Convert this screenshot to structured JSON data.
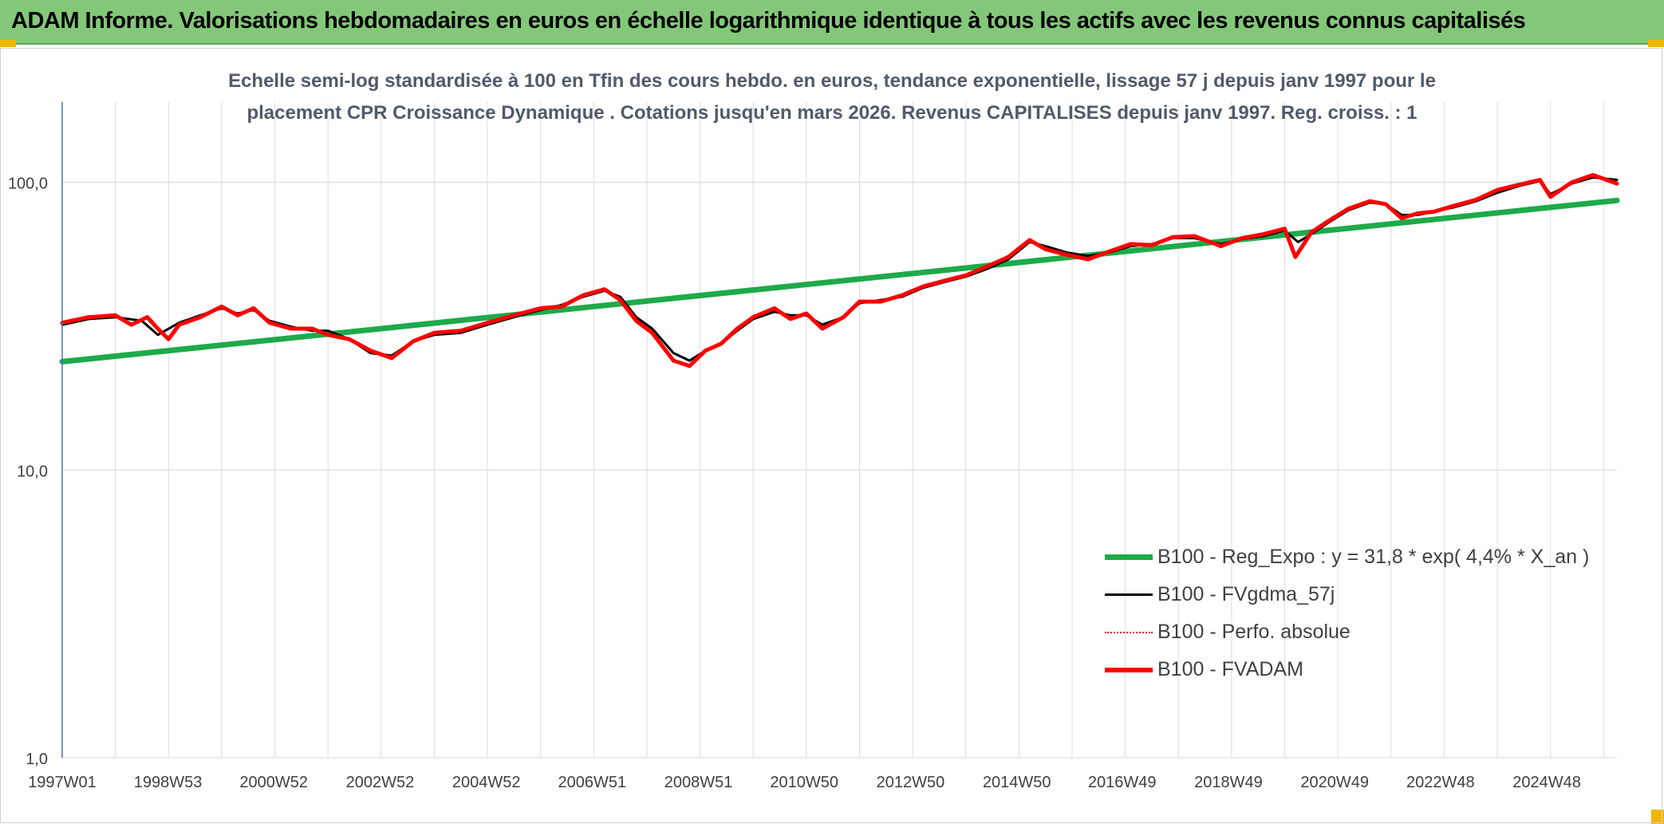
{
  "header": {
    "title": "ADAM Informe. Valorisations hebdomadaires en euros en échelle logarithmique identique à tous les actifs avec les revenus connus capitalisés"
  },
  "chart_data": {
    "type": "line",
    "title_line1": "Echelle semi-log standardisée à 100 en Tfin des cours hebdo. en euros, tendance exponentielle, lissage 57 j depuis janv 1997 pour le",
    "title_line2": "placement CPR Croissance Dynamique . Cotations jusqu'en mars 2026. Revenus CAPITALISES depuis janv 1997. Reg. croiss. : 1",
    "xlabel": "",
    "ylabel": "",
    "y_scale": "log",
    "ylim": [
      1,
      190
    ],
    "y_ticks": [
      1,
      10,
      100
    ],
    "y_tick_labels": [
      "1,0",
      "10,0",
      "100,0"
    ],
    "x_range": [
      1997.0,
      2026.25
    ],
    "x_ticks": [
      1997.0,
      1998.99,
      2000.98,
      2002.98,
      2004.98,
      2006.97,
      2008.97,
      2010.96,
      2012.96,
      2014.96,
      2016.94,
      2018.94,
      2020.94,
      2022.93,
      2024.93
    ],
    "x_tick_labels": [
      "1997W01",
      "1998W53",
      "2000W52",
      "2002W52",
      "2004W52",
      "2006W51",
      "2008W51",
      "2010W50",
      "2012W50",
      "2014W50",
      "2016W49",
      "2018W49",
      "2020W49",
      "2022W48",
      "2024W48"
    ],
    "grid": true,
    "legend_position": "bottom-right",
    "series": [
      {
        "name": "B100 - Reg_Expo : y = 31,8 * exp( 4,4% *  X_an )",
        "color": "#1eaa4a",
        "style": "thick",
        "x": [
          1997.0,
          2026.25
        ],
        "y": [
          23.8,
          86.5
        ]
      },
      {
        "name": "B100 - FVgdma_57j",
        "color": "#000000",
        "style": "thin",
        "x": [
          1997.0,
          1997.5,
          1998.0,
          1998.5,
          1998.8,
          1999.2,
          1999.6,
          2000.0,
          2000.3,
          2000.6,
          2000.9,
          2001.3,
          2001.7,
          2002.0,
          2002.4,
          2002.8,
          2003.2,
          2003.6,
          2004.0,
          2004.5,
          2005.0,
          2005.5,
          2006.0,
          2006.4,
          2006.8,
          2007.2,
          2007.5,
          2007.8,
          2008.1,
          2008.5,
          2008.8,
          2009.1,
          2009.4,
          2009.7,
          2010.0,
          2010.4,
          2010.7,
          2011.0,
          2011.3,
          2011.7,
          2012.0,
          2012.4,
          2012.8,
          2013.2,
          2013.6,
          2014.0,
          2014.4,
          2014.8,
          2015.2,
          2015.5,
          2015.9,
          2016.3,
          2016.7,
          2017.1,
          2017.5,
          2017.9,
          2018.3,
          2018.8,
          2019.2,
          2019.6,
          2020.0,
          2020.25,
          2020.5,
          2020.8,
          2021.2,
          2021.6,
          2021.9,
          2022.2,
          2022.5,
          2022.8,
          2023.2,
          2023.6,
          2024.0,
          2024.4,
          2024.8,
          2025.0,
          2025.4,
          2025.8,
          2026.25
        ],
        "y": [
          32.0,
          33.5,
          34.0,
          33.0,
          29.5,
          32.5,
          34.5,
          36.5,
          35.0,
          36.0,
          33.0,
          31.5,
          30.5,
          30.5,
          28.5,
          25.5,
          25.0,
          28.0,
          29.5,
          30.0,
          32.0,
          34.0,
          36.0,
          37.5,
          40.0,
          42.0,
          40.0,
          34.0,
          31.0,
          25.5,
          24.0,
          26.0,
          27.5,
          30.5,
          33.5,
          35.5,
          34.5,
          34.5,
          32.0,
          34.0,
          38.0,
          39.0,
          40.0,
          43.0,
          45.0,
          47.0,
          50.0,
          54.0,
          62.0,
          60.0,
          57.0,
          55.5,
          57.0,
          60.0,
          61.0,
          64.0,
          64.0,
          61.0,
          63.5,
          65.0,
          68.0,
          62.0,
          66.0,
          72.0,
          80.0,
          85.0,
          84.0,
          77.0,
          77.0,
          79.0,
          82.0,
          86.0,
          92.0,
          97.0,
          101.0,
          91.0,
          99.0,
          104.0,
          102.0
        ]
      },
      {
        "name": "B100 - Perfo. absolue",
        "color": "#e00000",
        "style": "dotted",
        "x": [],
        "y": []
      },
      {
        "name": "B100 - FVADAM",
        "color": "#ff0000",
        "style": "thick",
        "x": [
          1997.0,
          1997.5,
          1998.0,
          1998.3,
          1998.6,
          1998.8,
          1999.0,
          1999.2,
          1999.6,
          2000.0,
          2000.3,
          2000.6,
          2000.9,
          2001.3,
          2001.7,
          2002.0,
          2002.4,
          2002.8,
          2003.2,
          2003.6,
          2004.0,
          2004.5,
          2005.0,
          2005.5,
          2006.0,
          2006.4,
          2006.8,
          2007.2,
          2007.5,
          2007.8,
          2008.1,
          2008.5,
          2008.8,
          2009.1,
          2009.4,
          2009.7,
          2010.0,
          2010.4,
          2010.7,
          2011.0,
          2011.3,
          2011.7,
          2012.0,
          2012.4,
          2012.8,
          2013.2,
          2013.6,
          2014.0,
          2014.4,
          2014.8,
          2015.2,
          2015.5,
          2015.9,
          2016.3,
          2016.7,
          2017.1,
          2017.5,
          2017.9,
          2018.3,
          2018.8,
          2019.2,
          2019.6,
          2020.0,
          2020.2,
          2020.5,
          2020.8,
          2021.2,
          2021.6,
          2021.9,
          2022.2,
          2022.5,
          2022.8,
          2023.2,
          2023.6,
          2024.0,
          2024.4,
          2024.8,
          2025.0,
          2025.4,
          2025.8,
          2026.25
        ],
        "y": [
          32.5,
          34.0,
          34.5,
          32.0,
          34.0,
          31.0,
          28.5,
          32.0,
          34.0,
          37.0,
          34.5,
          36.5,
          32.5,
          31.0,
          31.0,
          29.5,
          28.5,
          26.0,
          24.5,
          28.0,
          30.0,
          30.5,
          32.5,
          34.5,
          36.5,
          37.0,
          40.5,
          42.5,
          39.0,
          33.0,
          30.0,
          24.0,
          23.0,
          26.0,
          27.5,
          31.0,
          34.0,
          36.5,
          33.5,
          35.0,
          31.0,
          34.0,
          38.5,
          38.5,
          40.5,
          43.5,
          45.5,
          47.5,
          51.0,
          55.0,
          63.0,
          58.5,
          56.0,
          54.0,
          57.5,
          61.0,
          60.5,
          64.5,
          65.0,
          60.0,
          64.0,
          66.0,
          69.0,
          55.0,
          67.0,
          73.0,
          81.0,
          86.0,
          84.0,
          75.0,
          78.0,
          79.0,
          83.0,
          87.0,
          94.0,
          98.0,
          102.0,
          89.0,
          100.0,
          106.0,
          99.0
        ]
      }
    ]
  }
}
